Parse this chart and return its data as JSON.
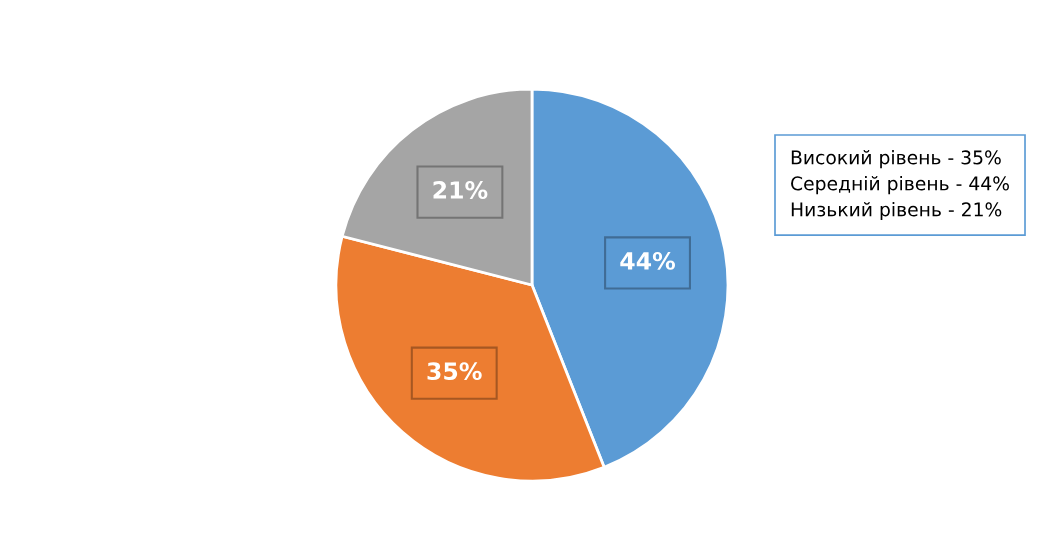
{
  "chart_data": {
    "type": "pie",
    "categories": [
      null,
      null,
      null
    ],
    "values": [
      44,
      35,
      21
    ],
    "colors": [
      "#5b9bd5",
      "#ed7d31",
      "#a5a5a5"
    ],
    "value_labels": [
      "44%",
      "35%",
      "21%"
    ],
    "annotations": [
      "Високий рівень - 35%",
      "Середній рівень - 44%",
      "Низький рівень - 21%"
    ]
  }
}
